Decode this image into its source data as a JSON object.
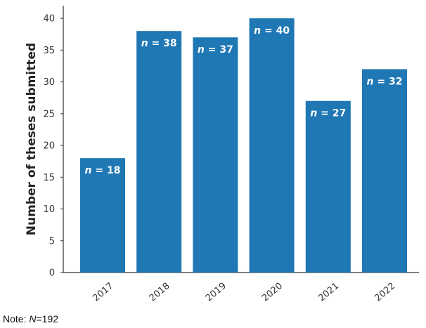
{
  "chart_data": {
    "type": "bar",
    "categories": [
      "2017",
      "2018",
      "2019",
      "2020",
      "2021",
      "2022"
    ],
    "values": [
      18,
      38,
      37,
      40,
      27,
      32
    ],
    "bar_labels": [
      "n = 18",
      "n = 38",
      "n = 37",
      "n = 40",
      "n = 27",
      "n = 32"
    ],
    "ylabel": "Number of theses submitted",
    "xlabel": "",
    "ylim": [
      0,
      42
    ],
    "yticks": [
      0,
      5,
      10,
      15,
      20,
      25,
      30,
      35,
      40
    ],
    "bar_color": "#1f77b4",
    "grid": false
  },
  "note": {
    "prefix": "Note: ",
    "italic": "N",
    "suffix": "=192"
  }
}
